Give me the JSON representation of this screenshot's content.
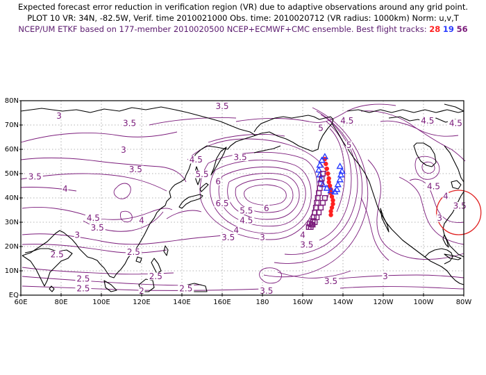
{
  "title": {
    "line1": "Expected forecast error reduction in verification region (VR) due to adaptive observations around any grid point.",
    "line2": "PLOT 10 VR: 34N, -82.5W, Verif. time 2010021000 Obs. time: 2010020712 (VR radius: 1000km) Norm: u,v,T",
    "line3_prefix": "NCEP/UM ETKF based on 177-member 2010020500 NCEP+ECMWF+CMC ensemble. Best flight tracks:",
    "track1": "28",
    "track2": "19",
    "track3": "56"
  },
  "axes": {
    "lat_labels": [
      "80N",
      "70N",
      "60N",
      "50N",
      "40N",
      "30N",
      "20N",
      "10N",
      "EQ"
    ],
    "lon_labels": [
      "60E",
      "80E",
      "100E",
      "120E",
      "140E",
      "160E",
      "180",
      "160W",
      "140W",
      "120W",
      "100W",
      "80W"
    ]
  },
  "contour_labels": [
    {
      "text": "3.5",
      "lon": 160,
      "lat": 77
    },
    {
      "text": "3",
      "lon": 79,
      "lat": 73
    },
    {
      "text": "3.5",
      "lon": 114,
      "lat": 70
    },
    {
      "text": "3",
      "lon": 111,
      "lat": 59
    },
    {
      "text": "3.5",
      "lon": 117,
      "lat": 51
    },
    {
      "text": "3.5",
      "lon": 67,
      "lat": 48
    },
    {
      "text": "4",
      "lon": 82,
      "lat": 43
    },
    {
      "text": "3.5",
      "lon": 169,
      "lat": 56
    },
    {
      "text": "4.5",
      "lon": 147,
      "lat": 55
    },
    {
      "text": "5.5",
      "lon": 150,
      "lat": 49
    },
    {
      "text": "6",
      "lon": 158,
      "lat": 46
    },
    {
      "text": "6.5",
      "lon": 160,
      "lat": 37
    },
    {
      "text": "5.5",
      "lon": 172,
      "lat": 34
    },
    {
      "text": "6",
      "lon": 182,
      "lat": 35
    },
    {
      "text": "4.5",
      "lon": 172,
      "lat": 30
    },
    {
      "text": "4",
      "lon": 167,
      "lat": 26
    },
    {
      "text": "3.5",
      "lon": 163,
      "lat": 23
    },
    {
      "text": "3",
      "lon": 180,
      "lat": 23
    },
    {
      "text": "4",
      "lon": 120,
      "lat": 30
    },
    {
      "text": "4.5",
      "lon": 96,
      "lat": 31
    },
    {
      "text": "3.5",
      "lon": 98,
      "lat": 27
    },
    {
      "text": "3",
      "lon": 88,
      "lat": 24
    },
    {
      "text": "2.5",
      "lon": 116,
      "lat": 17
    },
    {
      "text": "2.5",
      "lon": 78,
      "lat": 16
    },
    {
      "text": "2.5",
      "lon": 127,
      "lat": 7
    },
    {
      "text": "2.5",
      "lon": 91,
      "lat": 6
    },
    {
      "text": "2.5",
      "lon": 91,
      "lat": 2
    },
    {
      "text": "2.5",
      "lon": 142,
      "lat": 2
    },
    {
      "text": "2",
      "lon": 120,
      "lat": 1
    },
    {
      "text": "3.5",
      "lon": 182,
      "lat": 1
    },
    {
      "text": "4",
      "lon": 200,
      "lat": 24
    },
    {
      "text": "3.5",
      "lon": 202,
      "lat": 20
    },
    {
      "text": "5",
      "lon": 209,
      "lat": 68
    },
    {
      "text": "4.5",
      "lon": 222,
      "lat": 71
    },
    {
      "text": "5",
      "lon": 223,
      "lat": 61
    },
    {
      "text": "4.5",
      "lon": 262,
      "lat": 71
    },
    {
      "text": "4.5",
      "lon": 276,
      "lat": 70
    },
    {
      "text": "4.5",
      "lon": 265,
      "lat": 44
    },
    {
      "text": "4",
      "lon": 271,
      "lat": 40
    },
    {
      "text": "3.5",
      "lon": 278,
      "lat": 36
    },
    {
      "text": "3",
      "lon": 268,
      "lat": 31
    },
    {
      "text": "3.5",
      "lon": 214,
      "lat": 5
    },
    {
      "text": "3",
      "lon": 241,
      "lat": 7
    }
  ],
  "flight_tracks": [
    {
      "number": "28",
      "color": "#ff2020",
      "marker": "circle",
      "lon": [
        211,
        211.5,
        212,
        212.5,
        213,
        213,
        213.5,
        214,
        214,
        214.5,
        215,
        215,
        214.5,
        214,
        214
      ],
      "lat": [
        56,
        54,
        52,
        50,
        48,
        46.5,
        45,
        43.5,
        42,
        40.5,
        39,
        37.5,
        36,
        34.5,
        33
      ]
    },
    {
      "number": "19",
      "color": "#2a3cff",
      "marker": "triangle",
      "lon": [
        211,
        209.5,
        208.5,
        208,
        208.5,
        209,
        210,
        212,
        214,
        216,
        217,
        217.5,
        218.5,
        219,
        219.5,
        218.5
      ],
      "lat": [
        57,
        55.5,
        53.5,
        51.5,
        49.5,
        47.5,
        45.5,
        44,
        43,
        42.5,
        43.5,
        45.5,
        47.5,
        49.5,
        51,
        53
      ]
    },
    {
      "number": "56",
      "color": "#7a1a7a",
      "marker": "square",
      "lon": [
        210,
        209.5,
        209,
        208.5,
        208,
        207.5,
        207,
        206.5,
        206,
        205.5,
        205,
        204.5,
        204,
        203.5,
        203,
        205,
        206,
        207,
        208,
        209,
        210,
        211
      ],
      "lat": [
        50,
        48,
        46,
        44,
        42,
        40,
        38,
        36,
        34,
        32,
        30.5,
        29,
        28,
        29.5,
        28,
        29,
        30,
        32,
        34,
        36,
        38,
        40
      ]
    }
  ],
  "verification_region": {
    "lon": 277.5,
    "lat": 34,
    "radius": "1000km"
  },
  "colors": {
    "contour": "#7a1a7a",
    "coast": "#000000",
    "grid": "#999999",
    "vr_circle": "#e02020"
  }
}
